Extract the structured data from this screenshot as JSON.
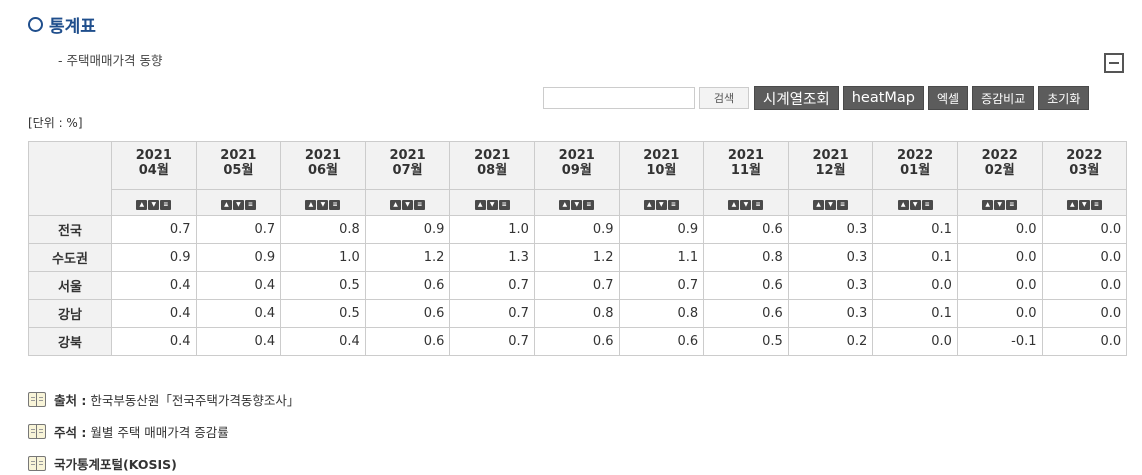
{
  "header": {
    "title": "통계표",
    "subtitle": "- 주택매매가격 동향"
  },
  "toolbar": {
    "search_value": "",
    "search_label": "검색",
    "timeseries_label": "시계열조회",
    "heatmap_label": "heatMap",
    "excel_label": "엑셀",
    "compare_label": "증감비교",
    "reset_label": "초기화"
  },
  "unit_label": "[단위 : %]",
  "table": {
    "columns": [
      {
        "year": "2021",
        "month": "04월"
      },
      {
        "year": "2021",
        "month": "05월"
      },
      {
        "year": "2021",
        "month": "06월"
      },
      {
        "year": "2021",
        "month": "07월"
      },
      {
        "year": "2021",
        "month": "08월"
      },
      {
        "year": "2021",
        "month": "09월"
      },
      {
        "year": "2021",
        "month": "10월"
      },
      {
        "year": "2021",
        "month": "11월"
      },
      {
        "year": "2021",
        "month": "12월"
      },
      {
        "year": "2022",
        "month": "01월"
      },
      {
        "year": "2022",
        "month": "02월"
      },
      {
        "year": "2022",
        "month": "03월"
      }
    ],
    "rows": [
      {
        "label": "전국",
        "values": [
          "0.7",
          "0.7",
          "0.8",
          "0.9",
          "1.0",
          "0.9",
          "0.9",
          "0.6",
          "0.3",
          "0.1",
          "0.0",
          "0.0"
        ]
      },
      {
        "label": "수도권",
        "values": [
          "0.9",
          "0.9",
          "1.0",
          "1.2",
          "1.3",
          "1.2",
          "1.1",
          "0.8",
          "0.3",
          "0.1",
          "0.0",
          "0.0"
        ]
      },
      {
        "label": "서울",
        "values": [
          "0.4",
          "0.4",
          "0.5",
          "0.6",
          "0.7",
          "0.7",
          "0.7",
          "0.6",
          "0.3",
          "0.0",
          "0.0",
          "0.0"
        ]
      },
      {
        "label": "강남",
        "values": [
          "0.4",
          "0.4",
          "0.5",
          "0.6",
          "0.7",
          "0.8",
          "0.8",
          "0.6",
          "0.3",
          "0.1",
          "0.0",
          "0.0"
        ]
      },
      {
        "label": "강북",
        "values": [
          "0.4",
          "0.4",
          "0.4",
          "0.6",
          "0.7",
          "0.6",
          "0.6",
          "0.5",
          "0.2",
          "0.0",
          "-0.1",
          "0.0"
        ]
      }
    ]
  },
  "footnotes": {
    "source_label": "출처 :",
    "source_text": "한국부동산원「전국주택가격동향조사」",
    "note_label": "주석 :",
    "note_text": "월별 주택 매매가격 증감률",
    "portal_text": "국가통계포털(KOSIS)"
  },
  "icons": {
    "title": "circle-outline-icon",
    "collapse": "minus-square-icon",
    "sort": [
      "sort-up-icon",
      "sort-down-icon",
      "menu-icon"
    ],
    "footnote": "book-icon"
  }
}
